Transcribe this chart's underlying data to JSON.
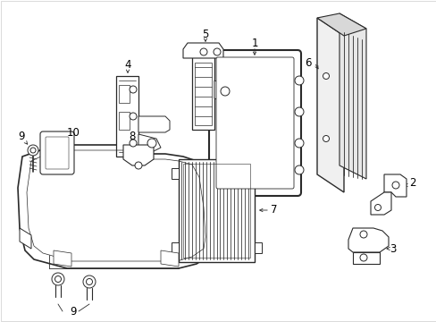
{
  "bg_color": "#ffffff",
  "line_color": "#2a2a2a",
  "figsize": [
    4.89,
    3.6
  ],
  "dpi": 100,
  "label_fontsize": 8.5
}
